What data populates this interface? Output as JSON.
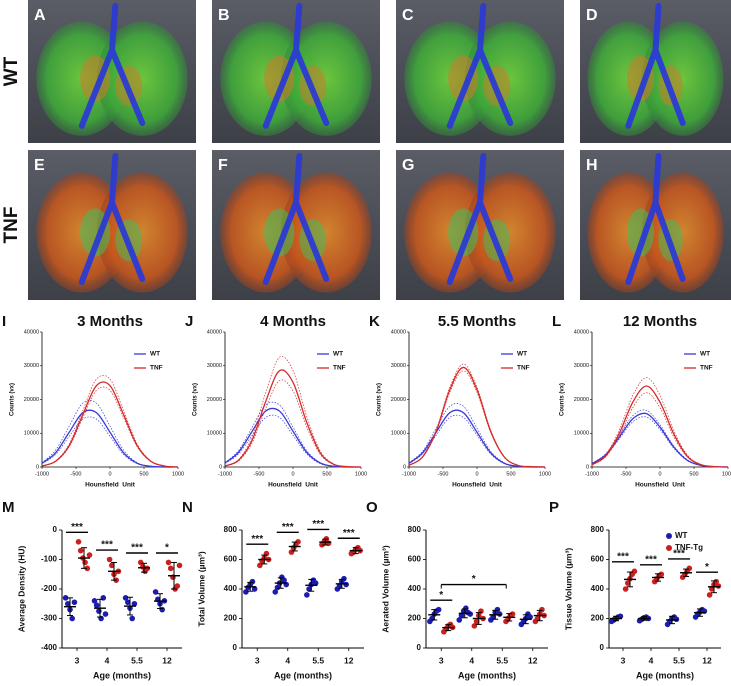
{
  "image_panels": {
    "letters": [
      "A",
      "B",
      "C",
      "D",
      "E",
      "F",
      "G",
      "H"
    ],
    "row_labels": [
      "WT",
      "TNF"
    ]
  },
  "chart_data": [
    {
      "type": "line",
      "panel": "I",
      "title": "3 Months",
      "x_label": "Hounsfield  Unit",
      "y_label": "Counts (vx)",
      "x": [
        -1000,
        -800,
        -600,
        -400,
        -200,
        0,
        200,
        400,
        600,
        800,
        1000
      ],
      "xlim": [
        -1000,
        1000
      ],
      "xticks": [
        -1000,
        -500,
        0,
        500,
        1000
      ],
      "ylim": [
        0,
        40000
      ],
      "yticks": [
        0,
        10000,
        20000,
        30000,
        40000
      ],
      "legend": "upper right",
      "series": [
        {
          "name": "WT",
          "color": "#3a3ad8",
          "values": [
            1100,
            4200,
            10300,
            16100,
            16100,
            10300,
            4200,
            1100,
            200,
            0,
            0
          ],
          "upper": [
            1300,
            5000,
            12100,
            18900,
            18900,
            12100,
            5000,
            1300,
            200,
            0,
            0
          ],
          "lower": [
            1000,
            3700,
            9100,
            14200,
            14200,
            9100,
            3700,
            1000,
            200,
            0,
            0
          ]
        },
        {
          "name": "TNF",
          "color": "#d42a2a",
          "values": [
            300,
            1700,
            6300,
            15500,
            24100,
            24100,
            15500,
            6300,
            1700,
            300,
            0
          ],
          "upper": [
            300,
            1800,
            6800,
            16700,
            26000,
            26000,
            16700,
            6800,
            1800,
            300,
            0
          ],
          "lower": [
            300,
            1600,
            6000,
            14600,
            22700,
            22700,
            14600,
            6000,
            1600,
            300,
            0
          ]
        }
      ]
    },
    {
      "type": "line",
      "panel": "J",
      "title": "4 Months",
      "x_label": "Hounsfield  Unit",
      "y_label": "Counts (vx)",
      "x": [
        -1000,
        -800,
        -600,
        -400,
        -200,
        0,
        200,
        400,
        600,
        800,
        1000
      ],
      "xlim": [
        -1000,
        1000
      ],
      "xticks": [
        -1000,
        -500,
        0,
        500,
        1000
      ],
      "ylim": [
        0,
        40000
      ],
      "yticks": [
        0,
        10000,
        20000,
        30000,
        40000
      ],
      "legend": "upper right",
      "series": [
        {
          "name": "WT",
          "color": "#3a3ad8",
          "values": [
            1200,
            4400,
            10600,
            16600,
            16600,
            10600,
            4400,
            1200,
            200,
            0,
            0
          ],
          "upper": [
            1300,
            4900,
            11800,
            18400,
            18400,
            11800,
            4900,
            1300,
            200,
            0,
            0
          ],
          "lower": [
            1000,
            3900,
            9400,
            14700,
            14700,
            9400,
            3900,
            1000,
            200,
            0,
            0
          ]
        },
        {
          "name": "TNF",
          "color": "#d42a2a",
          "values": [
            300,
            2000,
            8000,
            19500,
            28500,
            25100,
            13300,
            4200,
            800,
            100,
            0
          ],
          "upper": [
            300,
            2200,
            9100,
            22100,
            32500,
            28600,
            15100,
            4800,
            900,
            100,
            0
          ],
          "lower": [
            300,
            1800,
            7200,
            17400,
            25600,
            22500,
            11900,
            3800,
            700,
            100,
            0
          ]
        }
      ]
    },
    {
      "type": "line",
      "panel": "K",
      "title": "5.5 Months",
      "x_label": "Hounsfield  Unit",
      "y_label": "Counts (vx)",
      "x": [
        -1000,
        -800,
        -600,
        -400,
        -200,
        0,
        200,
        400,
        600,
        800,
        1000
      ],
      "xlim": [
        -1000,
        1000
      ],
      "xticks": [
        -1000,
        -500,
        0,
        500,
        1000
      ],
      "ylim": [
        0,
        40000
      ],
      "yticks": [
        0,
        10000,
        20000,
        30000,
        40000
      ],
      "legend": "upper right",
      "series": [
        {
          "name": "WT",
          "color": "#3a3ad8",
          "values": [
            1100,
            4200,
            10300,
            16100,
            16100,
            10300,
            4200,
            1100,
            200,
            0,
            0
          ],
          "upper": [
            1300,
            4700,
            11500,
            18000,
            18000,
            11500,
            4700,
            1300,
            200,
            0,
            0
          ],
          "lower": [
            1000,
            3900,
            9400,
            14700,
            14700,
            9400,
            3900,
            1000,
            200,
            0,
            0
          ]
        },
        {
          "name": "TNF",
          "color": "#d42a2a",
          "values": [
            500,
            3000,
            10600,
            22900,
            29500,
            22900,
            10600,
            3000,
            500,
            100,
            0
          ],
          "upper": [
            500,
            3100,
            11000,
            23600,
            30500,
            23600,
            11000,
            3100,
            500,
            100,
            0
          ],
          "lower": [
            500,
            2900,
            10300,
            22100,
            28500,
            22100,
            10300,
            2900,
            500,
            100,
            0
          ]
        }
      ]
    },
    {
      "type": "line",
      "panel": "L",
      "title": "12 Months",
      "x_label": "Hounsfield  Unit",
      "y_label": "Counts (vx)",
      "x": [
        -1000,
        -800,
        -600,
        -400,
        -200,
        0,
        200,
        400,
        600,
        800,
        1000
      ],
      "xlim": [
        -1000,
        1000
      ],
      "xticks": [
        -1000,
        -500,
        0,
        500,
        1000
      ],
      "ylim": [
        0,
        40000
      ],
      "yticks": [
        0,
        10000,
        20000,
        30000,
        40000
      ],
      "legend": "upper right",
      "series": [
        {
          "name": "WT",
          "color": "#3a3ad8",
          "values": [
            1000,
            3600,
            8800,
            14300,
            15800,
            11800,
            6000,
            2000,
            500,
            100,
            0
          ],
          "upper": [
            1100,
            3900,
            9400,
            15200,
            16800,
            12500,
            6300,
            2200,
            500,
            100,
            0
          ],
          "lower": [
            1000,
            3400,
            8300,
            13400,
            14800,
            11100,
            5600,
            1900,
            400,
            100,
            0
          ]
        },
        {
          "name": "TNF",
          "color": "#d42a2a",
          "values": [
            700,
            3200,
            9900,
            19200,
            24000,
            19200,
            9900,
            3200,
            700,
            100,
            0
          ],
          "upper": [
            800,
            3600,
            10900,
            21200,
            26500,
            21200,
            10900,
            3600,
            800,
            100,
            0
          ],
          "lower": [
            600,
            3000,
            9000,
            17600,
            22000,
            17600,
            9000,
            3000,
            600,
            100,
            0
          ]
        }
      ]
    },
    {
      "type": "dot",
      "panel": "M",
      "x_label": "Age (months)",
      "y_label": "Average Density (HU)",
      "categories": [
        "3",
        "4",
        "5.5",
        "12"
      ],
      "ylim": [
        -400,
        0
      ],
      "yticks": [
        -400,
        -300,
        -200,
        -100,
        0
      ],
      "series": [
        {
          "color": "#1c1cb0",
          "points": [
            [
              -230,
              -250,
              -270,
              -300,
              -245
            ],
            [
              -240,
              -255,
              -275,
              -300,
              -230,
              -285
            ],
            [
              -230,
              -245,
              -265,
              -300,
              -250
            ],
            [
              -210,
              -235,
              -250,
              -270,
              -240
            ]
          ],
          "mean": [
            -260,
            -265,
            -258,
            -241
          ],
          "sd": [
            30,
            30,
            30,
            25
          ]
        },
        {
          "color": "#cc2020",
          "points": [
            [
              -40,
              -70,
              -95,
              -110,
              -130,
              -85
            ],
            [
              -100,
              -120,
              -150,
              -170,
              -140
            ],
            [
              -110,
              -125,
              -140,
              -130
            ],
            [
              -110,
              -130,
              -160,
              -200,
              -190,
              -120
            ]
          ],
          "mean": [
            -95,
            -140,
            -128,
            -155
          ],
          "sd": [
            35,
            30,
            15,
            45
          ]
        }
      ],
      "significance": [
        {
          "text": "***",
          "from": 0,
          "to": 0
        },
        {
          "text": "***",
          "from": 1,
          "to": 1
        },
        {
          "text": "***",
          "from": 2,
          "to": 2
        },
        {
          "text": "*",
          "from": 3,
          "to": 3
        }
      ]
    },
    {
      "type": "dot",
      "panel": "N",
      "x_label": "Age (months)",
      "y_label": "Total Volume (µm³)",
      "categories": [
        "3",
        "4",
        "5.5",
        "12"
      ],
      "ylim": [
        0,
        800
      ],
      "yticks": [
        0,
        200,
        400,
        600,
        800
      ],
      "series": [
        {
          "color": "#1c1cb0",
          "points": [
            [
              380,
              410,
              430,
              450,
              400
            ],
            [
              380,
              410,
              440,
              480,
              460,
              430
            ],
            [
              360,
              400,
              430,
              460,
              440
            ],
            [
              400,
              420,
              450,
              470,
              430
            ]
          ],
          "mean": [
            415,
            440,
            425,
            435
          ],
          "sd": [
            30,
            35,
            40,
            30
          ]
        },
        {
          "color": "#cc2020",
          "points": [
            [
              560,
              590,
              610,
              640,
              600
            ],
            [
              650,
              680,
              700,
              720
            ],
            [
              700,
              720,
              740,
              710
            ],
            [
              640,
              650,
              670,
              680,
              660
            ]
          ],
          "mean": [
            600,
            688,
            718,
            660
          ],
          "sd": [
            30,
            30,
            20,
            20
          ]
        }
      ],
      "significance": [
        {
          "text": "***",
          "from": 0,
          "to": 0
        },
        {
          "text": "***",
          "from": 1,
          "to": 1
        },
        {
          "text": "***",
          "from": 2,
          "to": 2
        },
        {
          "text": "***",
          "from": 3,
          "to": 3
        }
      ]
    },
    {
      "type": "dot",
      "panel": "O",
      "x_label": "Age (months)",
      "y_label": "Aerated Volume (µm³)",
      "categories": [
        "3",
        "4",
        "5.5",
        "12"
      ],
      "ylim": [
        0,
        800
      ],
      "yticks": [
        0,
        200,
        400,
        600,
        800
      ],
      "series": [
        {
          "color": "#1c1cb0",
          "points": [
            [
              180,
              200,
              230,
              250,
              260
            ],
            [
              190,
              220,
              250,
              270,
              240,
              230
            ],
            [
              190,
              210,
              240,
              260,
              230
            ],
            [
              160,
              180,
              200,
              230,
              210
            ]
          ],
          "mean": [
            225,
            235,
            225,
            195
          ],
          "sd": [
            35,
            30,
            30,
            30
          ]
        },
        {
          "color": "#cc2020",
          "points": [
            [
              110,
              130,
              150,
              160,
              140
            ],
            [
              150,
              180,
              220,
              250,
              200
            ],
            [
              180,
              200,
              220,
              230
            ],
            [
              180,
              200,
              230,
              260,
              220
            ]
          ],
          "mean": [
            138,
            200,
            208,
            220
          ],
          "sd": [
            20,
            40,
            25,
            35
          ]
        }
      ],
      "significance": [
        {
          "text": "*",
          "from": 0,
          "to": 0
        },
        {
          "text": "*",
          "from": 0,
          "to": 2
        }
      ]
    },
    {
      "type": "dot",
      "panel": "P",
      "x_label": "Age (months)",
      "y_label": "Tissue Volume (µm³)",
      "categories": [
        "3",
        "4",
        "5.5",
        "12"
      ],
      "ylim": [
        0,
        800
      ],
      "yticks": [
        0,
        200,
        400,
        600,
        800
      ],
      "legend": "upper right",
      "series": [
        {
          "name": "WT",
          "color": "#1c1cb0",
          "points": [
            [
              180,
              190,
              200,
              210,
              215
            ],
            [
              185,
              195,
              205,
              210,
              200
            ],
            [
              160,
              180,
              200,
              210,
              195
            ],
            [
              210,
              230,
              245,
              260,
              250
            ]
          ],
          "mean": [
            200,
            200,
            190,
            240
          ],
          "sd": [
            15,
            12,
            25,
            25
          ]
        },
        {
          "name": "TNF-Tg",
          "color": "#cc2020",
          "points": [
            [
              400,
              440,
              470,
              500,
              520
            ],
            [
              450,
              470,
              490,
              500
            ],
            [
              480,
              500,
              520,
              540
            ],
            [
              360,
              400,
              430,
              450,
              420
            ]
          ],
          "mean": [
            465,
            478,
            510,
            415
          ],
          "sd": [
            50,
            25,
            25,
            40
          ]
        }
      ],
      "significance": [
        {
          "text": "***",
          "from": 0,
          "to": 0
        },
        {
          "text": "***",
          "from": 1,
          "to": 1
        },
        {
          "text": "***",
          "from": 2,
          "to": 2
        },
        {
          "text": "*",
          "from": 3,
          "to": 3
        }
      ]
    }
  ]
}
